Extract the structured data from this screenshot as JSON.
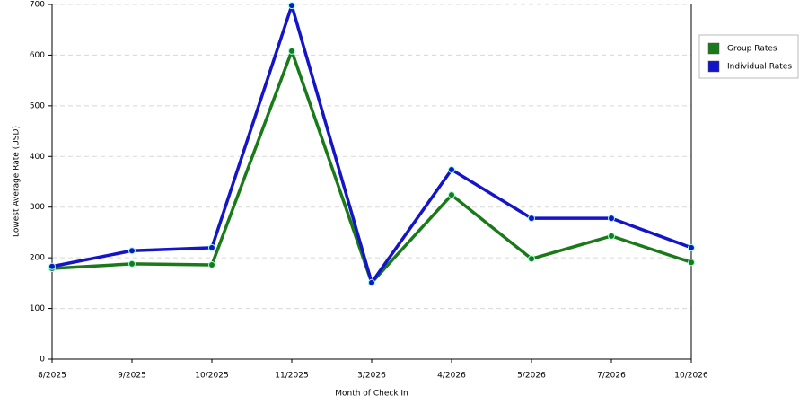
{
  "chart_data": {
    "type": "line",
    "x_label": "Month of Check In",
    "y_label": "Lowest Average Rate (USD)",
    "categories": [
      "8/2025",
      "9/2025",
      "10/2025",
      "11/2025",
      "3/2026",
      "4/2026",
      "5/2026",
      "7/2026",
      "10/2026"
    ],
    "series": [
      {
        "name": "Group Rates",
        "color": "#1a7a1a",
        "values": [
          179,
          188,
          186,
          608,
          151,
          324,
          198,
          243,
          191
        ]
      },
      {
        "name": "Individual Rates",
        "color": "#1414c8",
        "values": [
          183,
          214,
          220,
          698,
          151,
          374,
          278,
          278,
          220
        ]
      }
    ],
    "ylim": [
      0,
      700
    ],
    "yticks": [
      0,
      100,
      200,
      300,
      400,
      500,
      600,
      700
    ],
    "grid": true
  }
}
